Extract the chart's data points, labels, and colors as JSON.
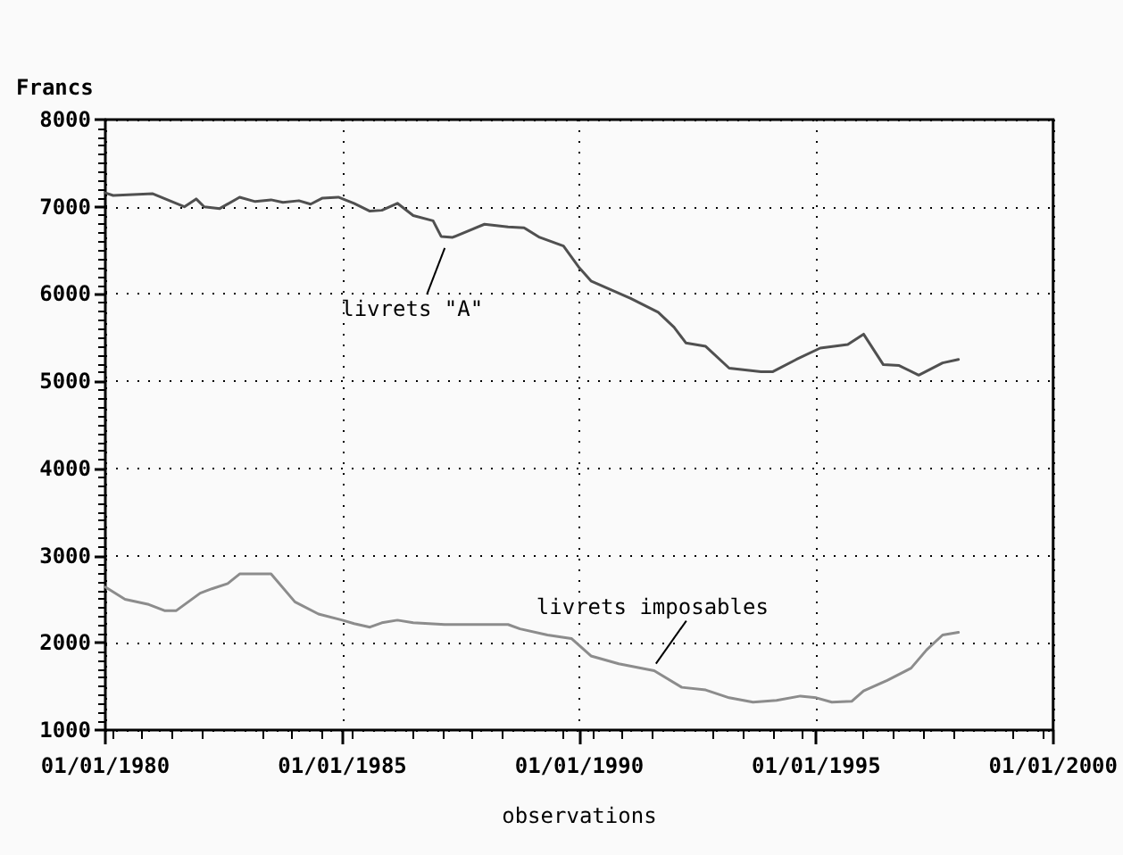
{
  "chart_data": {
    "type": "line",
    "xlabel": "observations",
    "ylabel": "Francs",
    "grid": true,
    "marker": "none",
    "line_style": "solid",
    "xlim": [
      "1980-01-01",
      "2000-01-01"
    ],
    "xticks": [
      {
        "value": "1980-01-01",
        "label": "01/01/1980"
      },
      {
        "value": "1985-01-01",
        "label": "01/01/1985"
      },
      {
        "value": "1990-01-01",
        "label": "01/01/1990"
      },
      {
        "value": "1995-01-01",
        "label": "01/01/1995"
      },
      {
        "value": "2000-01-01",
        "label": "01/01/2000"
      }
    ],
    "ylim": [
      1000,
      8000
    ],
    "yticks": [
      1000,
      2000,
      3000,
      4000,
      5000,
      6000,
      7000,
      8000
    ],
    "series": [
      {
        "color": "#505050",
        "x": [
          "1980-01",
          "1980-03",
          "1981-01",
          "1981-09",
          "1981-12",
          "1982-02",
          "1982-06",
          "1982-11",
          "1983-03",
          "1983-07",
          "1983-10",
          "1984-02",
          "1984-05",
          "1984-08",
          "1984-12",
          "1985-04",
          "1985-08",
          "1985-11",
          "1986-03",
          "1986-07",
          "1986-12",
          "1987-02",
          "1987-05",
          "1988-01",
          "1988-07",
          "1988-11",
          "1989-03",
          "1989-09",
          "1990-01",
          "1990-04",
          "1991-02",
          "1991-09",
          "1992-01",
          "1992-04",
          "1992-09",
          "1993-03",
          "1993-11",
          "1994-02",
          "1994-08",
          "1995-02",
          "1995-09",
          "1996-01",
          "1996-06",
          "1996-10",
          "1997-03",
          "1997-09",
          "1998-01"
        ],
        "values": [
          7160,
          7130,
          7150,
          7000,
          7090,
          7000,
          6980,
          7110,
          7060,
          7080,
          7050,
          7070,
          7030,
          7100,
          7110,
          7040,
          6950,
          6960,
          7040,
          6900,
          6840,
          6660,
          6650,
          6800,
          6770,
          6760,
          6650,
          6550,
          6300,
          6150,
          5950,
          5790,
          5620,
          5440,
          5400,
          5150,
          5110,
          5110,
          5250,
          5380,
          5420,
          5540,
          5190,
          5180,
          5070,
          5210,
          5250
        ]
      },
      {
        "color": "#8c8c8c",
        "x": [
          "1980-01",
          "1980-06",
          "1980-12",
          "1981-04",
          "1981-07",
          "1982-01",
          "1982-04",
          "1982-08",
          "1982-11",
          "1983-07",
          "1984-01",
          "1984-07",
          "1985-01",
          "1985-04",
          "1985-08",
          "1985-11",
          "1986-03",
          "1986-07",
          "1987-03",
          "1987-10",
          "1988-07",
          "1988-10",
          "1989-05",
          "1989-11",
          "1990-04",
          "1990-11",
          "1991-08",
          "1992-03",
          "1992-09",
          "1993-03",
          "1993-09",
          "1994-03",
          "1994-09",
          "1995-01",
          "1995-05",
          "1995-10",
          "1996-01",
          "1996-07",
          "1997-01",
          "1997-05",
          "1997-09",
          "1998-01"
        ],
        "values": [
          2640,
          2500,
          2440,
          2370,
          2370,
          2570,
          2620,
          2680,
          2790,
          2790,
          2470,
          2330,
          2260,
          2220,
          2180,
          2230,
          2260,
          2230,
          2210,
          2210,
          2210,
          2160,
          2090,
          2050,
          1850,
          1760,
          1680,
          1490,
          1460,
          1370,
          1320,
          1340,
          1390,
          1370,
          1320,
          1330,
          1450,
          1570,
          1710,
          1920,
          2090,
          2120
        ]
      }
    ],
    "annotations": [
      {
        "text": "livrets \"A\"",
        "x": "1987-03",
        "y": 6650
      },
      {
        "text": "livrets imposables",
        "x": "1991-08",
        "y": 1680
      }
    ]
  }
}
